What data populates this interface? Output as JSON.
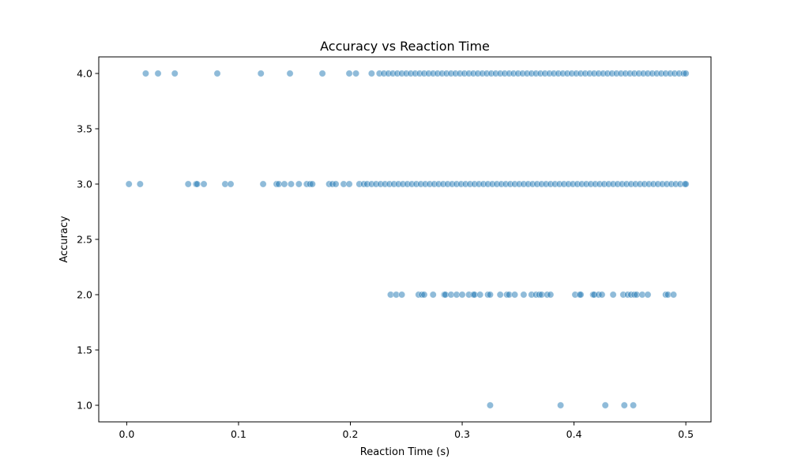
{
  "chart_data": {
    "type": "scatter",
    "title": "Accuracy vs Reaction Time",
    "xlabel": "Reaction Time (s)",
    "ylabel": "Accuracy",
    "xlim": [
      -0.025,
      0.5225
    ],
    "ylim": [
      0.85,
      4.15
    ],
    "xticks": [
      0.0,
      0.1,
      0.2,
      0.3,
      0.4,
      0.5
    ],
    "xtick_labels": [
      "0.0",
      "0.1",
      "0.2",
      "0.3",
      "0.4",
      "0.5"
    ],
    "yticks": [
      1.0,
      1.5,
      2.0,
      2.5,
      3.0,
      3.5,
      4.0
    ],
    "ytick_labels": [
      "1.0",
      "1.5",
      "2.0",
      "2.5",
      "3.0",
      "3.5",
      "4.0"
    ],
    "grid": false,
    "marker_color": "#1f77b4",
    "marker_edge_color": "#ffffff",
    "marker_alpha": 0.5,
    "series": [
      {
        "points": [
          [
            0.325,
            1
          ],
          [
            0.388,
            1
          ],
          [
            0.428,
            1
          ],
          [
            0.445,
            1
          ],
          [
            0.453,
            1
          ],
          [
            0.236,
            2
          ],
          [
            0.241,
            2
          ],
          [
            0.246,
            2
          ],
          [
            0.261,
            2
          ],
          [
            0.264,
            2
          ],
          [
            0.266,
            2
          ],
          [
            0.274,
            2
          ],
          [
            0.284,
            2
          ],
          [
            0.285,
            2
          ],
          [
            0.29,
            2
          ],
          [
            0.295,
            2
          ],
          [
            0.3,
            2
          ],
          [
            0.306,
            2
          ],
          [
            0.31,
            2
          ],
          [
            0.311,
            2
          ],
          [
            0.316,
            2
          ],
          [
            0.323,
            2
          ],
          [
            0.325,
            2
          ],
          [
            0.334,
            2
          ],
          [
            0.34,
            2
          ],
          [
            0.342,
            2
          ],
          [
            0.347,
            2
          ],
          [
            0.355,
            2
          ],
          [
            0.362,
            2
          ],
          [
            0.366,
            2
          ],
          [
            0.369,
            2
          ],
          [
            0.371,
            2
          ],
          [
            0.376,
            2
          ],
          [
            0.379,
            2
          ],
          [
            0.401,
            2
          ],
          [
            0.405,
            2
          ],
          [
            0.406,
            2
          ],
          [
            0.417,
            2
          ],
          [
            0.418,
            2
          ],
          [
            0.422,
            2
          ],
          [
            0.425,
            2
          ],
          [
            0.435,
            2
          ],
          [
            0.444,
            2
          ],
          [
            0.448,
            2
          ],
          [
            0.451,
            2
          ],
          [
            0.454,
            2
          ],
          [
            0.456,
            2
          ],
          [
            0.461,
            2
          ],
          [
            0.466,
            2
          ],
          [
            0.482,
            2
          ],
          [
            0.484,
            2
          ],
          [
            0.489,
            2
          ],
          [
            0.002,
            3
          ],
          [
            0.012,
            3
          ],
          [
            0.055,
            3
          ],
          [
            0.062,
            3
          ],
          [
            0.063,
            3
          ],
          [
            0.069,
            3
          ],
          [
            0.088,
            3
          ],
          [
            0.093,
            3
          ],
          [
            0.122,
            3
          ],
          [
            0.134,
            3
          ],
          [
            0.136,
            3
          ],
          [
            0.141,
            3
          ],
          [
            0.147,
            3
          ],
          [
            0.154,
            3
          ],
          [
            0.161,
            3
          ],
          [
            0.164,
            3
          ],
          [
            0.166,
            3
          ],
          [
            0.181,
            3
          ],
          [
            0.184,
            3
          ],
          [
            0.187,
            3
          ],
          [
            0.194,
            3
          ],
          [
            0.199,
            3
          ],
          [
            0.208,
            3
          ],
          [
            0.212,
            3
          ],
          [
            0.215,
            3
          ],
          [
            0.219,
            3
          ],
          [
            0.223,
            3
          ],
          [
            0.227,
            3
          ],
          [
            0.231,
            3
          ],
          [
            0.235,
            3
          ],
          [
            0.239,
            3
          ],
          [
            0.243,
            3
          ],
          [
            0.247,
            3
          ],
          [
            0.251,
            3
          ],
          [
            0.255,
            3
          ],
          [
            0.259,
            3
          ],
          [
            0.263,
            3
          ],
          [
            0.267,
            3
          ],
          [
            0.271,
            3
          ],
          [
            0.275,
            3
          ],
          [
            0.279,
            3
          ],
          [
            0.283,
            3
          ],
          [
            0.287,
            3
          ],
          [
            0.291,
            3
          ],
          [
            0.295,
            3
          ],
          [
            0.299,
            3
          ],
          [
            0.303,
            3
          ],
          [
            0.307,
            3
          ],
          [
            0.311,
            3
          ],
          [
            0.315,
            3
          ],
          [
            0.319,
            3
          ],
          [
            0.323,
            3
          ],
          [
            0.327,
            3
          ],
          [
            0.331,
            3
          ],
          [
            0.335,
            3
          ],
          [
            0.339,
            3
          ],
          [
            0.343,
            3
          ],
          [
            0.347,
            3
          ],
          [
            0.351,
            3
          ],
          [
            0.355,
            3
          ],
          [
            0.359,
            3
          ],
          [
            0.363,
            3
          ],
          [
            0.367,
            3
          ],
          [
            0.371,
            3
          ],
          [
            0.375,
            3
          ],
          [
            0.379,
            3
          ],
          [
            0.383,
            3
          ],
          [
            0.387,
            3
          ],
          [
            0.391,
            3
          ],
          [
            0.395,
            3
          ],
          [
            0.399,
            3
          ],
          [
            0.403,
            3
          ],
          [
            0.407,
            3
          ],
          [
            0.411,
            3
          ],
          [
            0.415,
            3
          ],
          [
            0.419,
            3
          ],
          [
            0.423,
            3
          ],
          [
            0.427,
            3
          ],
          [
            0.431,
            3
          ],
          [
            0.435,
            3
          ],
          [
            0.439,
            3
          ],
          [
            0.443,
            3
          ],
          [
            0.447,
            3
          ],
          [
            0.451,
            3
          ],
          [
            0.455,
            3
          ],
          [
            0.459,
            3
          ],
          [
            0.463,
            3
          ],
          [
            0.467,
            3
          ],
          [
            0.471,
            3
          ],
          [
            0.475,
            3
          ],
          [
            0.479,
            3
          ],
          [
            0.483,
            3
          ],
          [
            0.487,
            3
          ],
          [
            0.491,
            3
          ],
          [
            0.495,
            3
          ],
          [
            0.499,
            3
          ],
          [
            0.5,
            3
          ],
          [
            0.017,
            4
          ],
          [
            0.028,
            4
          ],
          [
            0.043,
            4
          ],
          [
            0.081,
            4
          ],
          [
            0.12,
            4
          ],
          [
            0.146,
            4
          ],
          [
            0.175,
            4
          ],
          [
            0.199,
            4
          ],
          [
            0.205,
            4
          ],
          [
            0.219,
            4
          ],
          [
            0.226,
            4
          ],
          [
            0.23,
            4
          ],
          [
            0.234,
            4
          ],
          [
            0.238,
            4
          ],
          [
            0.242,
            4
          ],
          [
            0.246,
            4
          ],
          [
            0.25,
            4
          ],
          [
            0.254,
            4
          ],
          [
            0.258,
            4
          ],
          [
            0.262,
            4
          ],
          [
            0.266,
            4
          ],
          [
            0.27,
            4
          ],
          [
            0.274,
            4
          ],
          [
            0.278,
            4
          ],
          [
            0.282,
            4
          ],
          [
            0.286,
            4
          ],
          [
            0.29,
            4
          ],
          [
            0.294,
            4
          ],
          [
            0.298,
            4
          ],
          [
            0.302,
            4
          ],
          [
            0.306,
            4
          ],
          [
            0.31,
            4
          ],
          [
            0.314,
            4
          ],
          [
            0.318,
            4
          ],
          [
            0.322,
            4
          ],
          [
            0.326,
            4
          ],
          [
            0.33,
            4
          ],
          [
            0.334,
            4
          ],
          [
            0.338,
            4
          ],
          [
            0.342,
            4
          ],
          [
            0.346,
            4
          ],
          [
            0.35,
            4
          ],
          [
            0.354,
            4
          ],
          [
            0.358,
            4
          ],
          [
            0.362,
            4
          ],
          [
            0.366,
            4
          ],
          [
            0.37,
            4
          ],
          [
            0.374,
            4
          ],
          [
            0.378,
            4
          ],
          [
            0.382,
            4
          ],
          [
            0.386,
            4
          ],
          [
            0.39,
            4
          ],
          [
            0.394,
            4
          ],
          [
            0.398,
            4
          ],
          [
            0.402,
            4
          ],
          [
            0.406,
            4
          ],
          [
            0.41,
            4
          ],
          [
            0.414,
            4
          ],
          [
            0.418,
            4
          ],
          [
            0.422,
            4
          ],
          [
            0.426,
            4
          ],
          [
            0.43,
            4
          ],
          [
            0.434,
            4
          ],
          [
            0.438,
            4
          ],
          [
            0.442,
            4
          ],
          [
            0.446,
            4
          ],
          [
            0.45,
            4
          ],
          [
            0.454,
            4
          ],
          [
            0.458,
            4
          ],
          [
            0.462,
            4
          ],
          [
            0.466,
            4
          ],
          [
            0.47,
            4
          ],
          [
            0.474,
            4
          ],
          [
            0.478,
            4
          ],
          [
            0.482,
            4
          ],
          [
            0.486,
            4
          ],
          [
            0.49,
            4
          ],
          [
            0.494,
            4
          ],
          [
            0.498,
            4
          ],
          [
            0.5,
            4
          ]
        ]
      }
    ]
  }
}
